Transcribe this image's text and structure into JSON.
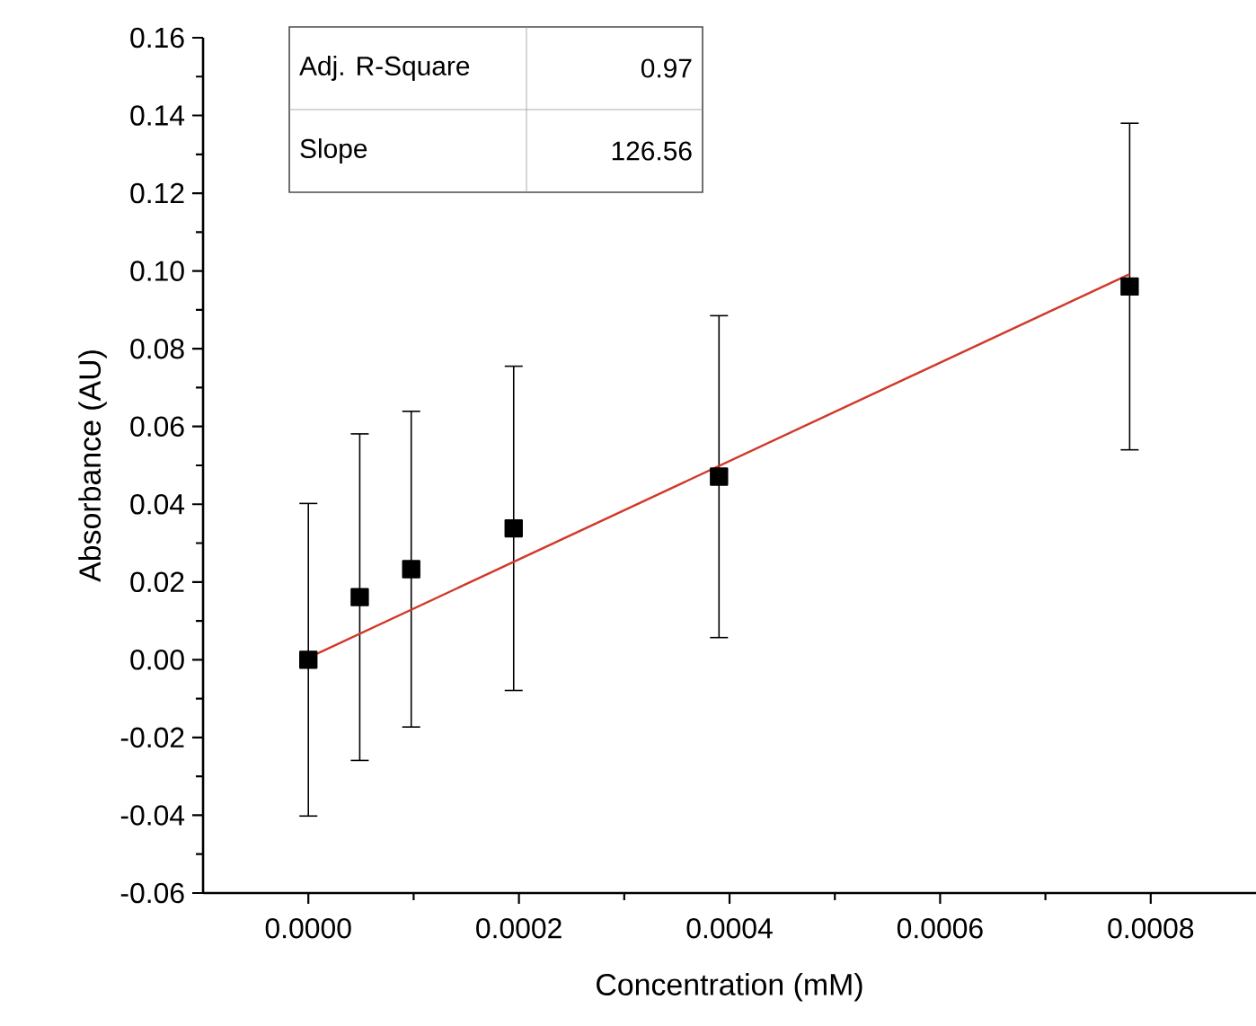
{
  "chart_data": {
    "type": "scatter",
    "xlabel": "Concentration (mM)",
    "ylabel": "Absorbance (AU)",
    "x": [
      0,
      4.88e-05,
      9.77e-05,
      0.000195,
      0.00039,
      0.00078
    ],
    "series": [
      {
        "color": "#000000",
        "values": [
          0,
          0.0161,
          0.0233,
          0.0338,
          0.0471,
          0.096
        ],
        "errors": [
          0.0402,
          0.042,
          0.0406,
          0.0417,
          0.0414,
          0.042
        ]
      },
      {
        "type": "line",
        "color": "#d03a2a",
        "marker": "none",
        "x": [
          0,
          0.00078
        ],
        "values": [
          0.0005,
          0.0992
        ]
      }
    ],
    "marker": "square",
    "xlim": [
      -0.0001,
      0.0009
    ],
    "ylim": [
      -0.06,
      0.16
    ],
    "xticks": [
      {
        "value": 0,
        "label": "0.0000"
      },
      {
        "value": 0.0002,
        "label": "0.0002"
      },
      {
        "value": 0.0004,
        "label": "0.0004"
      },
      {
        "value": 0.0006,
        "label": "0.0006"
      },
      {
        "value": 0.0008,
        "label": "0.0008"
      }
    ],
    "yticks": [
      {
        "value": -0.06,
        "label": "-0.06"
      },
      {
        "value": -0.04,
        "label": "-0.04"
      },
      {
        "value": -0.02,
        "label": "-0.02"
      },
      {
        "value": 0,
        "label": "0.00"
      },
      {
        "value": 0.02,
        "label": "0.02"
      },
      {
        "value": 0.04,
        "label": "0.04"
      },
      {
        "value": 0.06,
        "label": "0.06"
      },
      {
        "value": 0.08,
        "label": "0.08"
      },
      {
        "value": 0.1,
        "label": "0.10"
      },
      {
        "value": 0.12,
        "label": "0.12"
      },
      {
        "value": 0.14,
        "label": "0.14"
      },
      {
        "value": 0.16,
        "label": "0.16"
      }
    ],
    "annotations": [
      "Adj. R-Square",
      "0.97",
      "Slope",
      "126.56"
    ]
  }
}
